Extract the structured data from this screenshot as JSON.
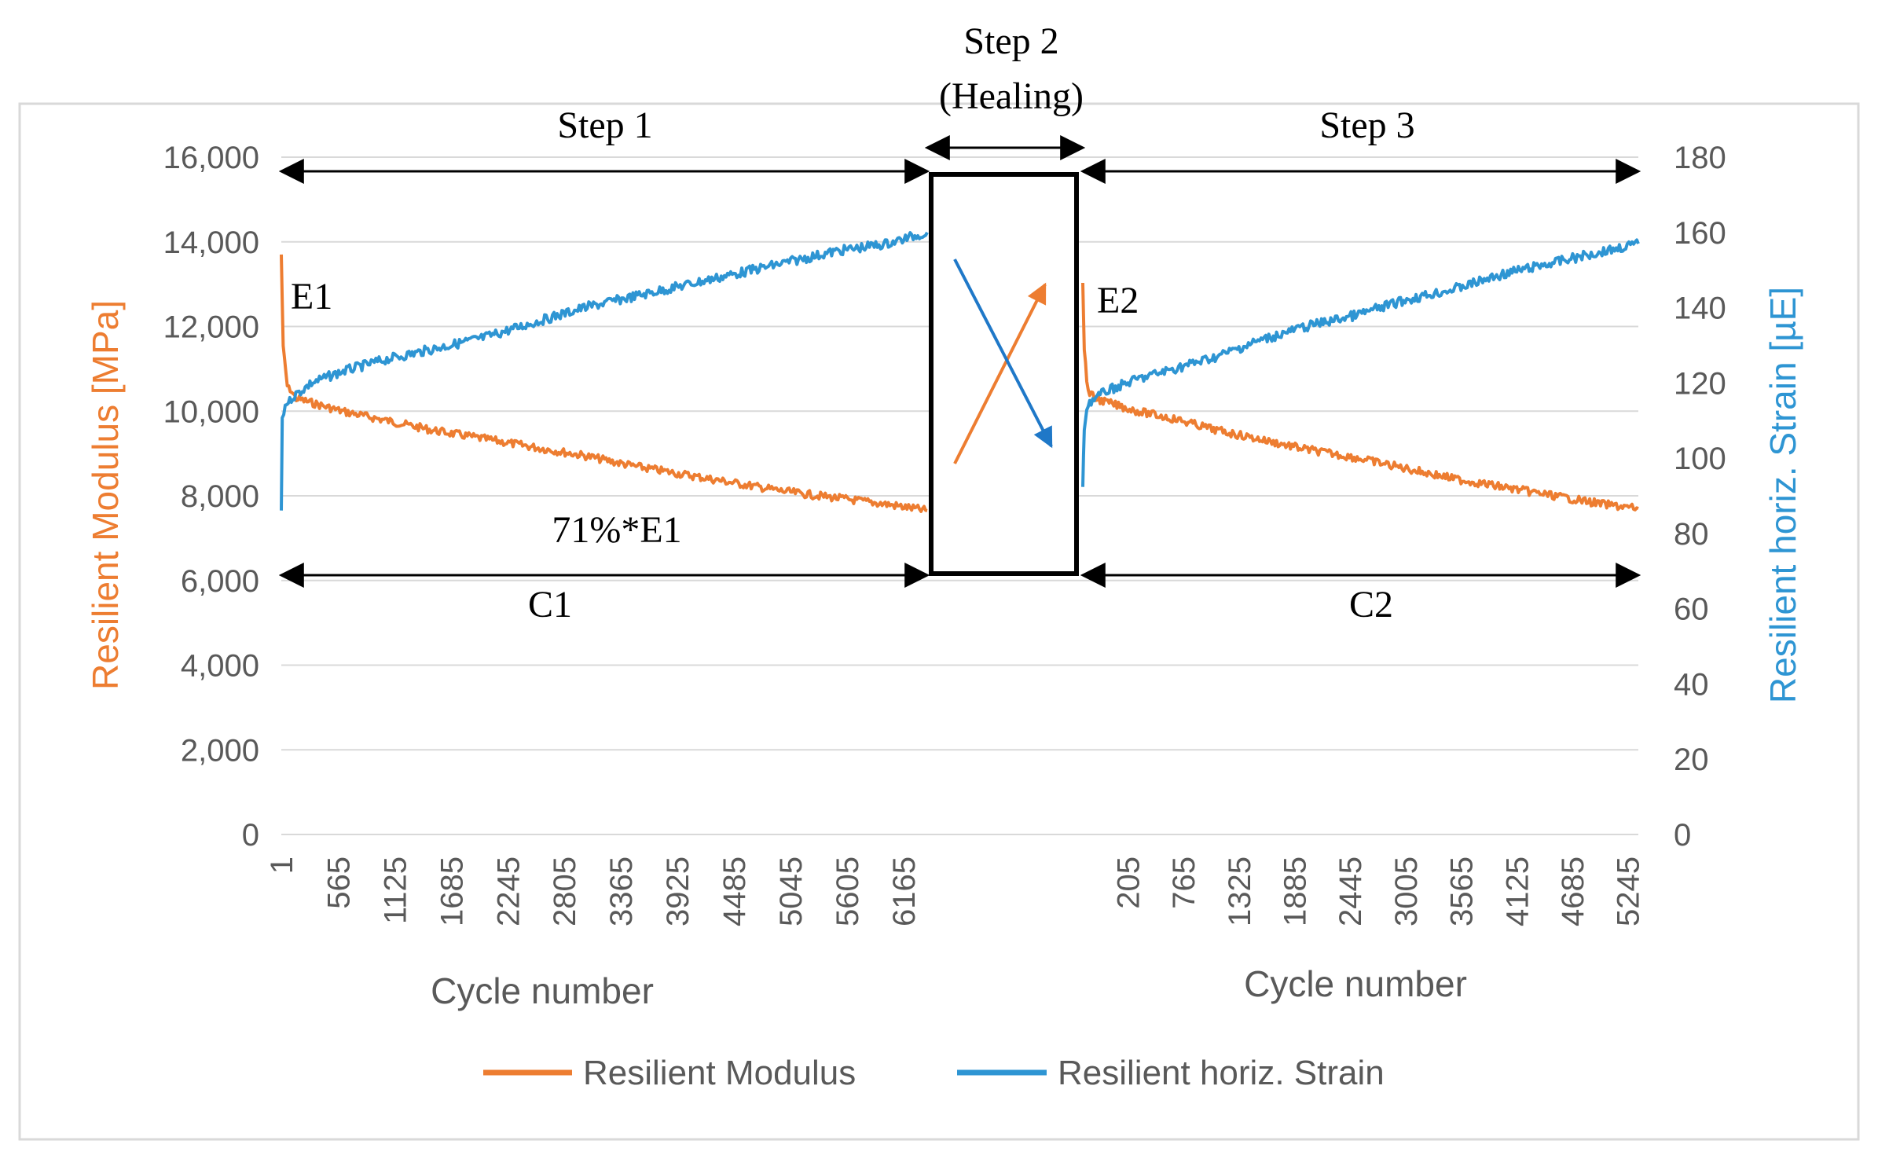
{
  "chart_data": {
    "type": "line",
    "title": "",
    "colors": {
      "modulus": "#ed7d31",
      "strain": "#2e95d3",
      "grid": "#d9d9d9",
      "text": "#595959",
      "frame": "#000000"
    },
    "y_left": {
      "label": "Resilient Modulus [MPa]",
      "range": [
        0,
        16000
      ],
      "ticks": [
        "0",
        "2,000",
        "4,000",
        "6,000",
        "8,000",
        "10,000",
        "12,000",
        "14,000",
        "16,000"
      ]
    },
    "y_right": {
      "label": "Resilient horiz. Strain [µE]",
      "range": [
        0,
        180
      ],
      "ticks": [
        "0",
        "20",
        "40",
        "60",
        "80",
        "100",
        "120",
        "140",
        "160",
        "180"
      ]
    },
    "panels": [
      {
        "xlabel": "Cycle number",
        "x_range": [
          1,
          6400
        ],
        "x_ticks": [
          "1",
          "565",
          "1125",
          "1685",
          "2245",
          "2805",
          "3365",
          "3925",
          "4485",
          "5045",
          "5605",
          "6165"
        ],
        "x_tick_values": [
          1,
          565,
          1125,
          1685,
          2245,
          2805,
          3365,
          3925,
          4485,
          5045,
          5605,
          6165
        ],
        "series": [
          {
            "name": "Resilient Modulus",
            "axis": "left",
            "x": [
              1,
              20,
              60,
              150,
              300,
              600,
              1000,
              1500,
              2000,
              2500,
              3000,
              3500,
              4000,
              4500,
              5000,
              5500,
              6000,
              6400
            ],
            "values": [
              13700,
              11500,
              10600,
              10300,
              10200,
              10000,
              9800,
              9550,
              9350,
              9150,
              8950,
              8700,
              8500,
              8300,
              8100,
              7950,
              7800,
              7650
            ]
          },
          {
            "name": "Resilient horiz. Strain",
            "axis": "right",
            "x": [
              1,
              10,
              40,
              100,
              300,
              600,
              1000,
              1500,
              2000,
              2500,
              3000,
              3500,
              4000,
              4500,
              5000,
              5500,
              6000,
              6400
            ],
            "values": [
              86,
              110,
              114,
              116,
              120,
              123,
              126,
              129,
              132,
              136,
              140,
              143,
              146,
              149,
              152,
              155,
              157,
              160
            ]
          }
        ]
      },
      {
        "xlabel": "Cycle number",
        "x_range": [
          -250,
          5350
        ],
        "x_ticks": [
          "205",
          "765",
          "1325",
          "1885",
          "2445",
          "3005",
          "3565",
          "4125",
          "4685",
          "5245"
        ],
        "x_tick_values": [
          205,
          765,
          1325,
          1885,
          2445,
          3005,
          3565,
          4125,
          4685,
          5245
        ],
        "series": [
          {
            "name": "Resilient Modulus",
            "axis": "left",
            "x": [
              -250,
              -235,
              -210,
              -180,
              -120,
              0,
              300,
              700,
              1100,
              1500,
              2000,
              2500,
              3000,
              3500,
              4000,
              4500,
              5000,
              5350
            ],
            "values": [
              13000,
              11500,
              10700,
              10400,
              10300,
              10200,
              10000,
              9800,
              9550,
              9350,
              9100,
              8900,
              8650,
              8400,
              8200,
              8000,
              7800,
              7700
            ]
          },
          {
            "name": "Resilient horiz. Strain",
            "axis": "right",
            "x": [
              -250,
              -235,
              -210,
              -180,
              -120,
              0,
              300,
              700,
              1100,
              1500,
              2000,
              2500,
              3000,
              3500,
              4000,
              4500,
              5000,
              5350
            ],
            "values": [
              92,
              108,
              113,
              115,
              116,
              118,
              121,
              124,
              127,
              131,
              135,
              138,
              142,
              145,
              149,
              152,
              155,
              157
            ]
          }
        ]
      }
    ],
    "annotations": {
      "step1": "Step 1",
      "step2_line1": "Step 2",
      "step2_line2": "(Healing)",
      "step3": "Step 3",
      "e1": "E1",
      "e2": "E2",
      "pct": "71%*E1",
      "c1": "C1",
      "c2": "C2"
    },
    "legend": [
      {
        "name": "Resilient Modulus",
        "color": "#ed7d31"
      },
      {
        "name": "Resilient horiz. Strain",
        "color": "#2e95d3"
      }
    ]
  }
}
